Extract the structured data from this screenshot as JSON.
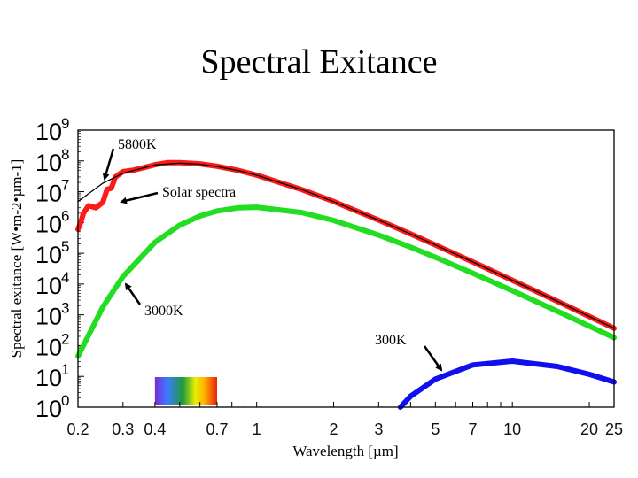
{
  "title": "Spectral Exitance",
  "chart_data": {
    "type": "line",
    "xlabel": "Wavelength [µm]",
    "ylabel": "Spectral exitance   [W•m-2•µm-1]",
    "x_scale": "log",
    "y_scale": "log",
    "xlim": [
      0.2,
      25
    ],
    "ylim": [
      1,
      1000000000
    ],
    "x_ticks": [
      "0.2",
      "0.3",
      "0.4",
      "0.7",
      "1",
      "2",
      "3",
      "5",
      "7",
      "10",
      "20",
      "25"
    ],
    "x_tick_values": [
      0.2,
      0.3,
      0.4,
      0.7,
      1,
      2,
      3,
      5,
      7,
      10,
      20,
      25
    ],
    "y_tick_exponents": [
      0,
      1,
      2,
      3,
      4,
      5,
      6,
      7,
      8,
      9
    ],
    "grid": false,
    "series": [
      {
        "name": "5800K",
        "color": "#000000",
        "points": [
          [
            0.2,
            4800000.0
          ],
          [
            0.25,
            18800000.0
          ],
          [
            0.3,
            39500000.0
          ],
          [
            0.4,
            74200000.0
          ],
          [
            0.5,
            84500000.0
          ],
          [
            0.6,
            78400000.0
          ],
          [
            0.7,
            66000000.0
          ],
          [
            0.85,
            48200000.0
          ],
          [
            1,
            34200000.0
          ],
          [
            1.5,
            11650000.0
          ],
          [
            2,
            4760000.0
          ],
          [
            3,
            1200000.0
          ],
          [
            4,
            425000.0
          ],
          [
            5,
            187000.0
          ],
          [
            7,
            52300.0
          ],
          [
            10,
            13300.0
          ],
          [
            15,
            2739
          ],
          [
            20,
            886
          ],
          [
            25,
            367
          ]
        ]
      },
      {
        "name": "Solar spectra",
        "color": "#ff1a1a",
        "points": [
          [
            0.2,
            600000.0
          ],
          [
            0.205,
            1000000.0
          ],
          [
            0.21,
            2000000.0
          ],
          [
            0.22,
            3500000.0
          ],
          [
            0.235,
            3000000.0
          ],
          [
            0.25,
            4500000.0
          ],
          [
            0.26,
            12000000.0
          ],
          [
            0.27,
            13000000.0
          ],
          [
            0.28,
            30000000.0
          ],
          [
            0.3,
            45000000.0
          ],
          [
            0.33,
            50000000.0
          ],
          [
            0.36,
            60000000.0
          ],
          [
            0.4,
            75000000.0
          ],
          [
            0.45,
            88000000.0
          ],
          [
            0.5,
            88000000.0
          ],
          [
            0.6,
            80000000.0
          ],
          [
            0.7,
            67000000.0
          ],
          [
            0.85,
            49000000.0
          ],
          [
            1,
            34500000.0
          ],
          [
            1.5,
            11700000.0
          ],
          [
            2,
            4800000.0
          ],
          [
            3,
            1200000.0
          ],
          [
            4,
            425000.0
          ],
          [
            5,
            187000.0
          ],
          [
            7,
            52300.0
          ],
          [
            10,
            13300.0
          ],
          [
            15,
            2739
          ],
          [
            20,
            886
          ],
          [
            25,
            367
          ]
        ]
      },
      {
        "name": "3000K",
        "color": "#22dd22",
        "points": [
          [
            0.2,
            45
          ],
          [
            0.25,
            1790
          ],
          [
            0.3,
            17500.0
          ],
          [
            0.4,
            227000.0
          ],
          [
            0.5,
            818000.0
          ],
          [
            0.6,
            1620000.0
          ],
          [
            0.7,
            2360000.0
          ],
          [
            0.85,
            3000000.0
          ],
          [
            1,
            3120000.0
          ],
          [
            1.5,
            2100000.0
          ],
          [
            2,
            1170000.0
          ],
          [
            3,
            390000.0
          ],
          [
            4,
            158000.0
          ],
          [
            5,
            74400.0
          ],
          [
            7,
            22600.0
          ],
          [
            10,
            6080
          ],
          [
            15,
            1308
          ],
          [
            20,
            431
          ],
          [
            25,
            181
          ]
        ]
      },
      {
        "name": "300K",
        "color": "#1010ee",
        "points": [
          [
            3.65,
            1.0
          ],
          [
            4,
            2.27
          ],
          [
            5,
            8.18
          ],
          [
            7,
            23.6
          ],
          [
            10,
            31.2
          ],
          [
            15,
            21.0
          ],
          [
            20,
            11.7
          ],
          [
            25,
            6.6
          ]
        ]
      }
    ],
    "annotations": [
      "5800K",
      "Solar spectra",
      "3000K",
      "300K"
    ],
    "visible_spectrum_band": [
      0.4,
      0.7
    ]
  }
}
